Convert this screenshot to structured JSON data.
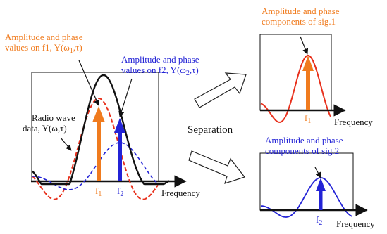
{
  "colors": {
    "orange": "#f07b1e",
    "blue": "#2323d6",
    "red": "#e8301c",
    "navy": "#0a0a8a",
    "black": "#111111"
  },
  "left_panel": {
    "label_f1_line1": "Amplitude and phase",
    "label_f1_line2_prefix": "values on f1, Y(ω",
    "label_f1_line2_sub": "1",
    "label_f1_line2_suffix": ",τ)",
    "label_f2_line1": "Amplitude and phase",
    "label_f2_line2_prefix": "values on f2, Y(ω",
    "label_f2_line2_sub": "2",
    "label_f2_line2_suffix": ",τ)",
    "radio_line1": "Radio wave",
    "radio_line2": "data, Y(ω,τ)",
    "tick_f1_base": "f",
    "tick_f1_sub": "1",
    "tick_f2_base": "f",
    "tick_f2_sub": "2",
    "xlabel": "Frequency"
  },
  "separation_label": "Separation",
  "sig1_panel": {
    "title_line1": "Amplitude and phase",
    "title_line2": "components of sig.1",
    "tick_base": "f",
    "tick_sub": "1",
    "xlabel": "Frequency"
  },
  "sig2_panel": {
    "title_line1": "Amplitude and phase",
    "title_line2": "components of sig.2",
    "tick_base": "f",
    "tick_sub": "2",
    "xlabel": "Frequency"
  }
}
